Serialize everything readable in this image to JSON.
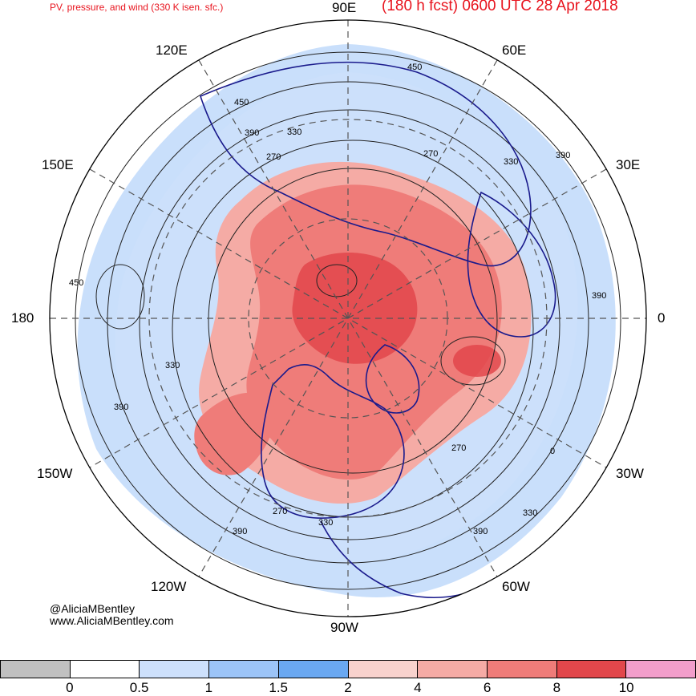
{
  "header": {
    "left_title": "PV, pressure, and wind (330 K isen. sfc.)",
    "right_title": "(180 h fcst) 0600 UTC 28 Apr 2018"
  },
  "longitude_labels": {
    "e90": "90E",
    "e60": "60E",
    "e120": "120E",
    "e30": "30E",
    "e150": "150E",
    "lon180": "180",
    "lon0": "0",
    "w150": "150W",
    "w30": "30W",
    "w120": "120W",
    "w60": "60W",
    "w90": "90W"
  },
  "contour_labels": [
    "450",
    "450",
    "330",
    "390",
    "270",
    "270",
    "330",
    "390",
    "450",
    "330",
    "390",
    "390",
    "270",
    "0",
    "330",
    "390",
    "270",
    "330",
    "390"
  ],
  "credits": {
    "handle": "@AliciaMBentley",
    "website": "www.AliciaMBentley.com"
  },
  "colorbar": {
    "colors": [
      "#c0c0c0",
      "#ffffff",
      "#cde0fb",
      "#9cc4f7",
      "#6aa8f1",
      "#f8d2cd",
      "#f5aba5",
      "#ef7c79",
      "#e2474b",
      "#f29ecb"
    ],
    "ticks": [
      "0",
      "0.5",
      "1",
      "1.5",
      "2",
      "4",
      "6",
      "8",
      "10"
    ]
  },
  "map_colors": {
    "land_outline": "#1a1a8c",
    "pv_high": "#e2474b",
    "pv_mid": "#ef7c79",
    "pv_low": "#f5aba5",
    "pv_blue": "#9cc4f7",
    "pv_lightblue": "#cde0fb",
    "contour": "#222222",
    "grid": "#555555"
  }
}
